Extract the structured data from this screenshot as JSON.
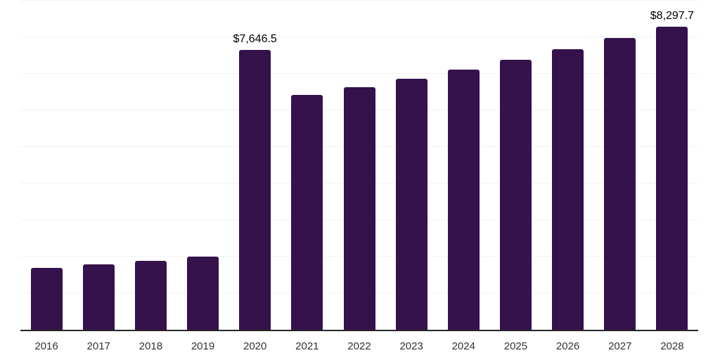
{
  "chart_data": {
    "type": "bar",
    "title": "",
    "xlabel": "",
    "ylabel": "",
    "categories": [
      "2016",
      "2017",
      "2018",
      "2019",
      "2020",
      "2021",
      "2022",
      "2023",
      "2024",
      "2025",
      "2026",
      "2027",
      "2028"
    ],
    "values": [
      1690,
      1790,
      1885,
      2000,
      7646.5,
      6420,
      6630,
      6865,
      7125,
      7390,
      7670,
      7980,
      8297.7
    ],
    "bar_labels": [
      "",
      "",
      "",
      "",
      "$7,646.5",
      "",
      "",
      "",
      "",
      "",
      "",
      "",
      "$8,297.7"
    ],
    "ylim": [
      0,
      9000
    ],
    "gridline_step": 1000,
    "grid": "horizontal-only",
    "legend": "none",
    "y_axis_labels": "none",
    "colors": {
      "bar": "#35124B",
      "gridline": "#f2f2f2",
      "axis_line": "#262626",
      "tick_label": "#333333",
      "data_label": "#000000",
      "background": "#ffffff"
    }
  }
}
